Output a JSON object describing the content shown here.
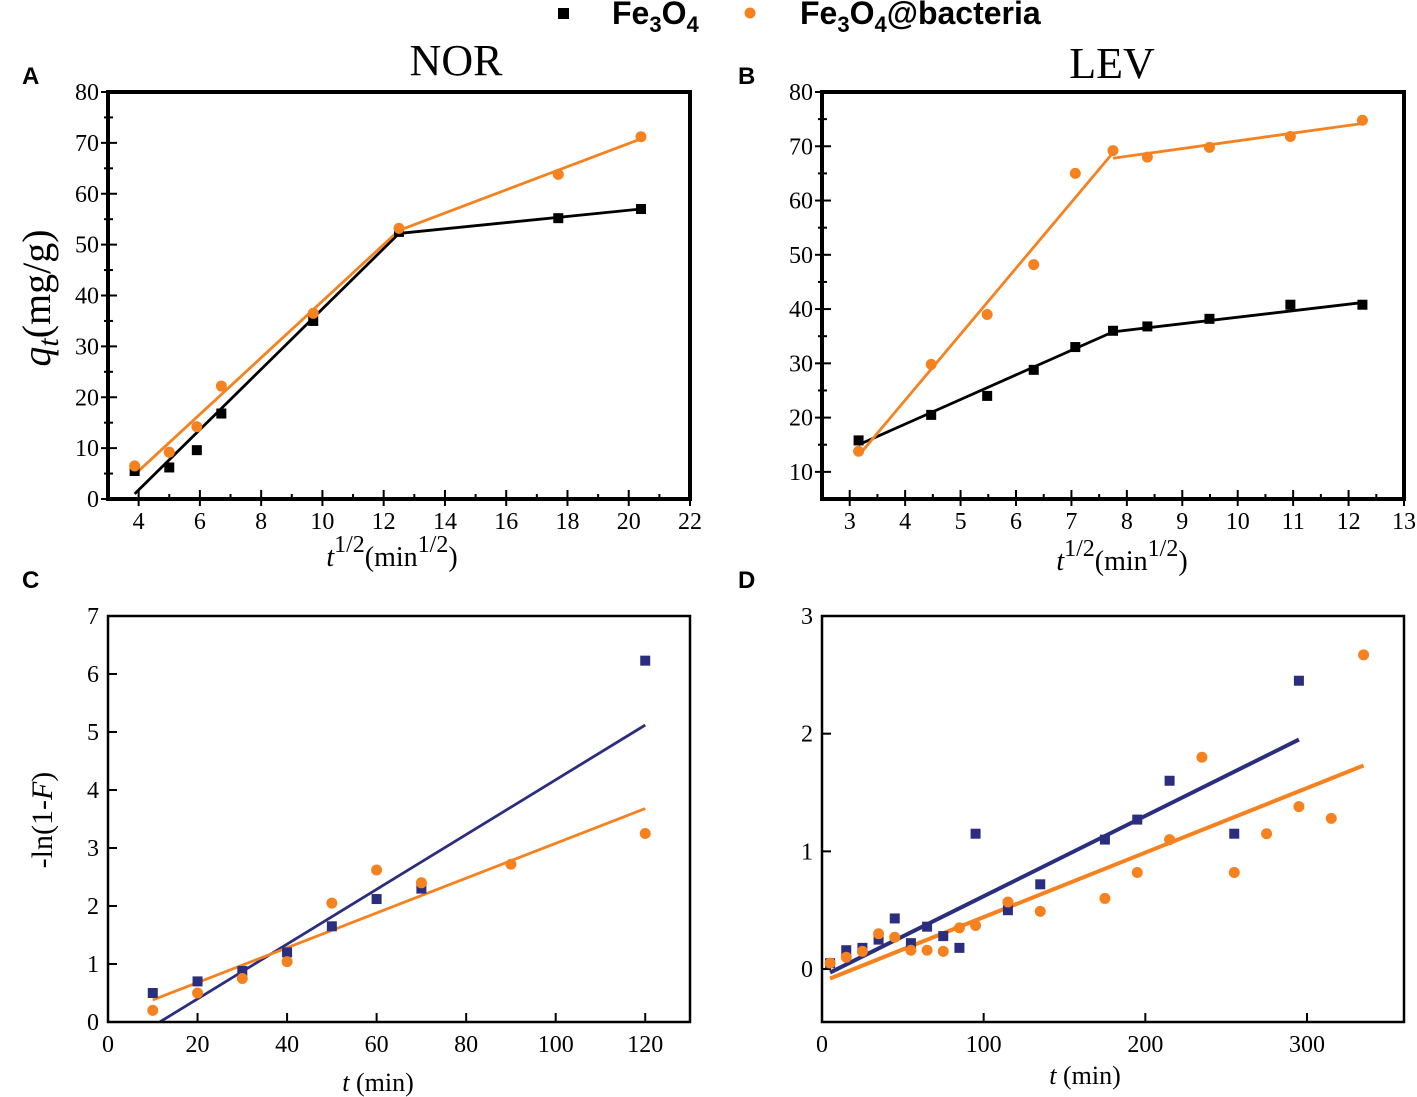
{
  "legend": {
    "items": [
      {
        "base": "Fe",
        "sub1": "3",
        "mid": "O",
        "sub2": "4",
        "tail": "",
        "color": "#000000",
        "marker": "square"
      },
      {
        "base": "Fe",
        "sub1": "3",
        "mid": "O",
        "sub2": "4",
        "tail": "@bacteria",
        "color": "#F5821F",
        "marker": "circle"
      }
    ]
  },
  "colors": {
    "black": "#000000",
    "orange": "#F5821F",
    "navy": "#2B2E7E"
  },
  "chart_data": [
    {
      "panel": "A",
      "type": "scatter",
      "title": "NOR",
      "ylabel_main": "q",
      "ylabel_sub": "t",
      "ylabel_rest": "(mg/g)",
      "xlabel_main": "t",
      "xlabel_sup": "1/2",
      "xlabel_rest": "(min",
      "xlabel_rest_sup": "1/2",
      "xlabel_close": ")",
      "xlim": [
        3,
        22
      ],
      "ylim": [
        0,
        80
      ],
      "xticks": [
        4,
        6,
        8,
        10,
        12,
        14,
        16,
        18,
        20,
        22
      ],
      "yticks": [
        0,
        10,
        20,
        30,
        40,
        50,
        60,
        70,
        80
      ],
      "series": [
        {
          "name": "Fe3O4",
          "color": "#000000",
          "marker": "square",
          "x": [
            3.87,
            5.0,
            5.9,
            6.7,
            9.7,
            12.5,
            17.7,
            20.4
          ],
          "y": [
            5.5,
            6.2,
            9.6,
            16.8,
            35.0,
            52.5,
            55.2,
            57.0
          ],
          "fits": [
            {
              "x": [
                3.87,
                12.5
              ],
              "y": [
                1.0,
                52.2
              ]
            },
            {
              "x": [
                12.5,
                20.4
              ],
              "y": [
                52.2,
                57.0
              ]
            }
          ]
        },
        {
          "name": "Fe3O4@bacteria",
          "color": "#F5821F",
          "marker": "circle",
          "x": [
            3.87,
            5.0,
            5.9,
            6.7,
            9.7,
            12.5,
            17.7,
            20.4
          ],
          "y": [
            6.5,
            9.2,
            14.2,
            22.2,
            36.5,
            53.2,
            63.8,
            71.2
          ],
          "fits": [
            {
              "x": [
                3.87,
                12.5
              ],
              "y": [
                4.8,
                52.8
              ]
            },
            {
              "x": [
                12.5,
                20.4
              ],
              "y": [
                52.8,
                70.8
              ]
            }
          ]
        }
      ]
    },
    {
      "panel": "B",
      "type": "scatter",
      "title": "LEV",
      "xlabel_main": "t",
      "xlabel_sup": "1/2",
      "xlabel_rest": "(min",
      "xlabel_rest_sup": "1/2",
      "xlabel_close": ")",
      "xlim": [
        2.5,
        13
      ],
      "ylim": [
        5,
        80
      ],
      "xticks": [
        3,
        4,
        5,
        6,
        7,
        8,
        9,
        10,
        11,
        12,
        13
      ],
      "yticks": [
        10,
        20,
        30,
        40,
        50,
        60,
        70,
        80
      ],
      "series": [
        {
          "name": "Fe3O4",
          "color": "#000000",
          "marker": "square",
          "x": [
            3.16,
            4.47,
            5.48,
            6.32,
            7.07,
            7.75,
            8.37,
            9.49,
            10.95,
            12.25
          ],
          "y": [
            15.8,
            20.5,
            24.0,
            28.8,
            33.0,
            36.0,
            36.8,
            38.2,
            40.8,
            40.8
          ],
          "fits": [
            {
              "x": [
                3.16,
                7.75
              ],
              "y": [
                15.0,
                35.8
              ]
            },
            {
              "x": [
                7.75,
                12.25
              ],
              "y": [
                35.8,
                41.2
              ]
            }
          ]
        },
        {
          "name": "Fe3O4@bacteria",
          "color": "#F5821F",
          "marker": "circle",
          "x": [
            3.16,
            4.47,
            5.48,
            6.32,
            7.07,
            7.75,
            8.37,
            9.49,
            10.95,
            12.25
          ],
          "y": [
            13.8,
            29.8,
            39.0,
            48.2,
            65.0,
            69.2,
            68.0,
            69.8,
            71.8,
            74.8
          ],
          "fits": [
            {
              "x": [
                3.16,
                7.75
              ],
              "y": [
                13.0,
                68.8
              ]
            },
            {
              "x": [
                7.75,
                12.25
              ],
              "y": [
                67.8,
                74.2
              ]
            }
          ]
        }
      ]
    },
    {
      "panel": "C",
      "type": "scatter",
      "ylabel": "-ln(1-",
      "ylabel_ital": "F",
      "ylabel_close": ")",
      "xlabel_main": "t",
      "xlabel_rest": " (min)",
      "xlim": [
        0,
        130
      ],
      "ylim": [
        0,
        7
      ],
      "xticks": [
        0,
        20,
        40,
        60,
        80,
        100,
        120
      ],
      "yticks": [
        0,
        1,
        2,
        3,
        4,
        5,
        6,
        7
      ],
      "series": [
        {
          "name": "Fe3O4",
          "color": "#2B2E7E",
          "marker": "square",
          "x": [
            10,
            20,
            30,
            40,
            50,
            60,
            70,
            120
          ],
          "y": [
            0.5,
            0.7,
            0.88,
            1.2,
            1.65,
            2.12,
            2.3,
            6.23
          ],
          "fits": [
            {
              "x": [
                10.5,
                120
              ],
              "y": [
                -0.05,
                5.12
              ]
            }
          ]
        },
        {
          "name": "Fe3O4@bacteria",
          "color": "#F5821F",
          "marker": "circle",
          "x": [
            10,
            20,
            30,
            40,
            50,
            60,
            70,
            90,
            120
          ],
          "y": [
            0.2,
            0.5,
            0.75,
            1.04,
            2.05,
            2.62,
            2.4,
            2.72,
            3.25
          ],
          "fits": [
            {
              "x": [
                10,
                120
              ],
              "y": [
                0.38,
                3.68
              ]
            }
          ]
        }
      ]
    },
    {
      "panel": "D",
      "type": "scatter",
      "xlabel_main": "t",
      "xlabel_rest": " (min)",
      "xlim": [
        0,
        360
      ],
      "ylim": [
        -0.45,
        3
      ],
      "xticks": [
        0,
        100,
        200,
        300
      ],
      "yticks": [
        0,
        1,
        2,
        3
      ],
      "series": [
        {
          "name": "Fe3O4",
          "color": "#2B2E7E",
          "marker": "square",
          "x": [
            5,
            15,
            25,
            35,
            45,
            55,
            65,
            75,
            85,
            95,
            115,
            135,
            175,
            195,
            215,
            255,
            295
          ],
          "y": [
            0.05,
            0.16,
            0.18,
            0.25,
            0.43,
            0.22,
            0.36,
            0.28,
            0.18,
            1.15,
            0.5,
            0.72,
            1.1,
            1.27,
            1.6,
            1.15,
            2.45
          ],
          "fits": [
            {
              "x": [
                5,
                295
              ],
              "y": [
                -0.03,
                1.95
              ]
            }
          ]
        },
        {
          "name": "Fe3O4@bacteria",
          "color": "#F5821F",
          "marker": "circle",
          "x": [
            5,
            15,
            25,
            35,
            45,
            55,
            65,
            75,
            85,
            95,
            115,
            135,
            175,
            195,
            215,
            235,
            255,
            275,
            295,
            315,
            335
          ],
          "y": [
            0.05,
            0.1,
            0.15,
            0.3,
            0.27,
            0.16,
            0.16,
            0.15,
            0.35,
            0.37,
            0.57,
            0.49,
            0.6,
            0.82,
            1.1,
            1.8,
            0.82,
            1.15,
            1.38,
            1.28,
            2.67
          ],
          "fits": [
            {
              "x": [
                5,
                335
              ],
              "y": [
                -0.08,
                1.73
              ]
            }
          ]
        }
      ]
    }
  ]
}
